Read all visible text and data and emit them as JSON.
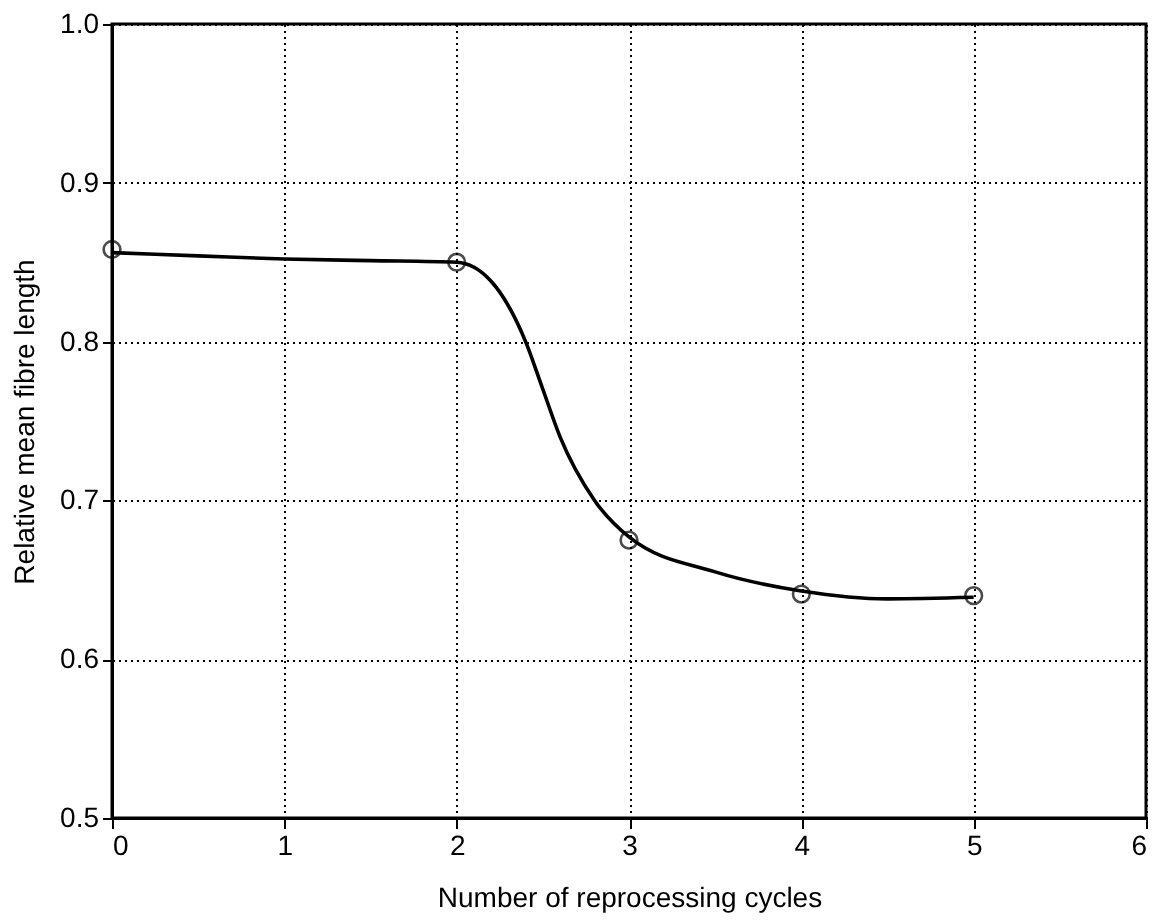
{
  "chart_data": {
    "type": "scatter",
    "xlabel": "Number of reprocessing cycles",
    "ylabel": "Relative mean fibre length",
    "xlim": [
      0,
      6
    ],
    "xticks": [
      0,
      1,
      2,
      3,
      4,
      5,
      6
    ],
    "ylim": [
      0.5,
      1.0
    ],
    "yticks": [
      0.5,
      0.6,
      0.7,
      0.8,
      0.9,
      {
        "value": 1,
        "label": "1.0"
      }
    ],
    "grid": true,
    "marker": "circle",
    "series": [
      {
        "type": "line",
        "color": "#000000",
        "marker": "none",
        "x": [
          0,
          0.5,
          1,
          1.5,
          2,
          2.2,
          2.4,
          2.5,
          2.6,
          2.8,
          3,
          3.5,
          4,
          4.5,
          5
        ],
        "values": [
          0.856,
          0.854,
          0.852,
          0.851,
          0.85,
          0.838,
          0.8,
          0.77,
          0.74,
          0.7,
          0.677,
          0.655,
          0.643,
          0.638,
          0.639
        ]
      },
      {
        "color": "#000000",
        "x": [
          0,
          2,
          3,
          4,
          5
        ],
        "values": [
          0.858,
          0.85,
          0.675,
          0.641,
          0.64
        ]
      }
    ]
  }
}
